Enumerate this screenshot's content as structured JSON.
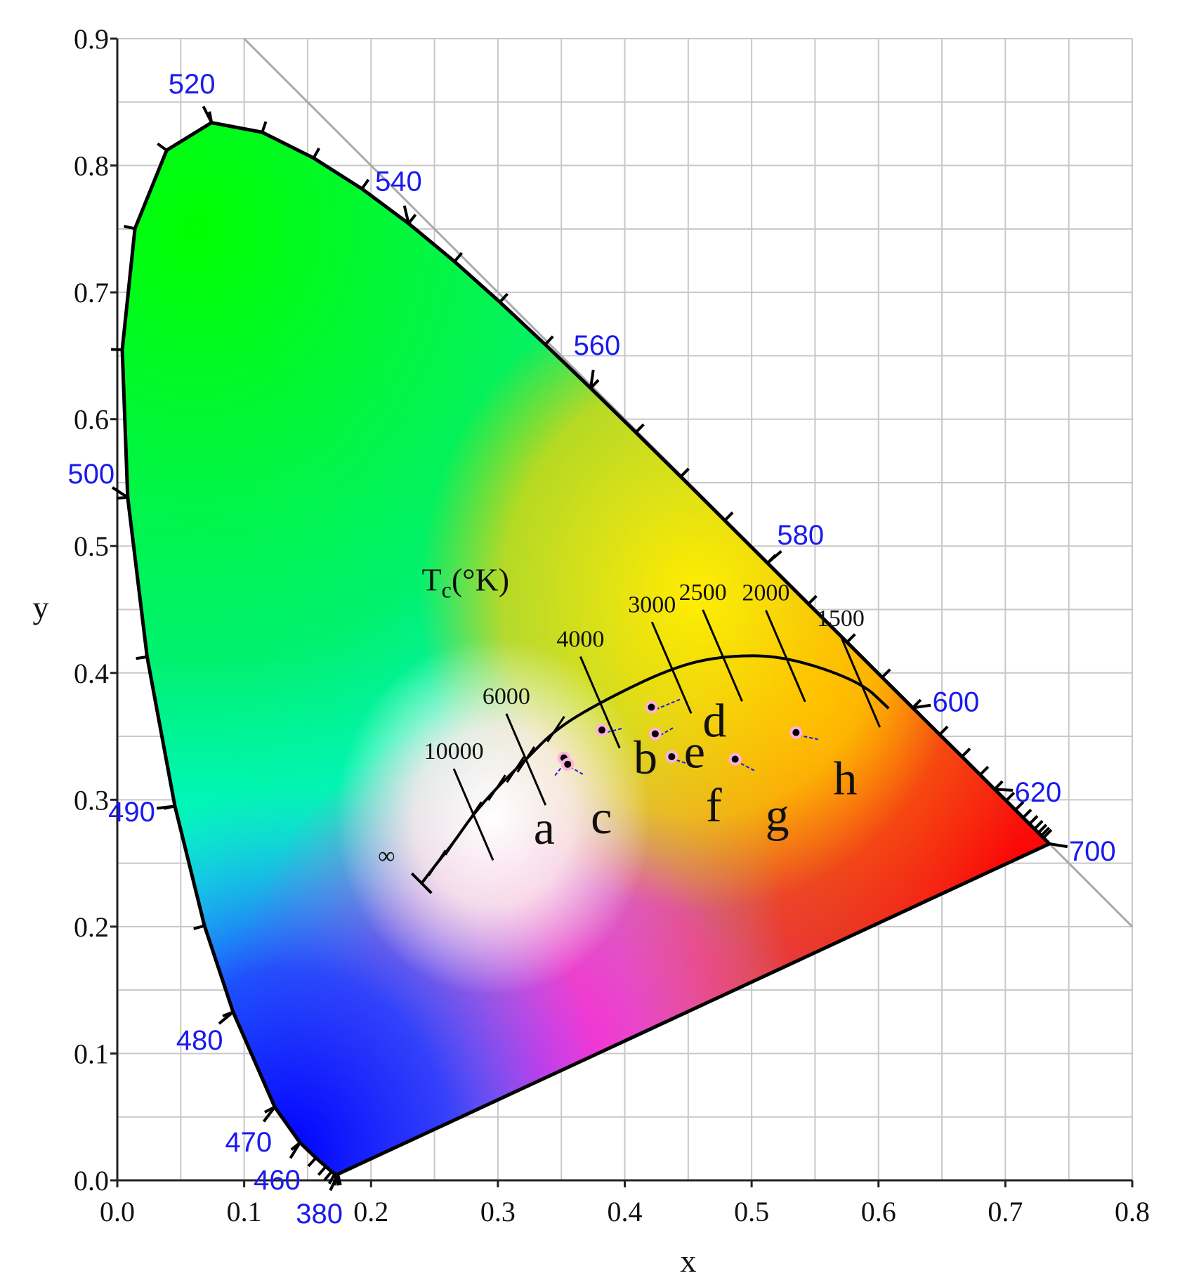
{
  "chart_data": {
    "type": "scatter",
    "xlabel": "x",
    "ylabel": "y",
    "xlim": [
      0.0,
      0.8
    ],
    "ylim": [
      0.0,
      0.9
    ],
    "xticks": [
      "0.0",
      "0.1",
      "0.2",
      "0.3",
      "0.4",
      "0.5",
      "0.6",
      "0.7",
      "0.8"
    ],
    "yticks": [
      "0.0",
      "0.1",
      "0.2",
      "0.3",
      "0.4",
      "0.5",
      "0.6",
      "0.7",
      "0.8",
      "0.9"
    ],
    "grid": true,
    "spectral_locus": [
      [
        0.1741,
        0.005
      ],
      [
        0.1738,
        0.0049
      ],
      [
        0.1733,
        0.0048
      ],
      [
        0.1726,
        0.0048
      ],
      [
        0.1714,
        0.0051
      ],
      [
        0.1689,
        0.0069
      ],
      [
        0.1644,
        0.0109
      ],
      [
        0.1566,
        0.0177
      ],
      [
        0.144,
        0.0297
      ],
      [
        0.1241,
        0.0578
      ],
      [
        0.0913,
        0.1327
      ],
      [
        0.0687,
        0.2007
      ],
      [
        0.0454,
        0.295
      ],
      [
        0.0235,
        0.4127
      ],
      [
        0.0082,
        0.5384
      ],
      [
        0.0039,
        0.6548
      ],
      [
        0.0139,
        0.7502
      ],
      [
        0.0389,
        0.812
      ],
      [
        0.0743,
        0.8338
      ],
      [
        0.1142,
        0.8262
      ],
      [
        0.1547,
        0.8059
      ],
      [
        0.1929,
        0.7816
      ],
      [
        0.2296,
        0.7543
      ],
      [
        0.2658,
        0.7243
      ],
      [
        0.3016,
        0.6923
      ],
      [
        0.3373,
        0.6589
      ],
      [
        0.3731,
        0.6245
      ],
      [
        0.4087,
        0.5896
      ],
      [
        0.4441,
        0.5547
      ],
      [
        0.4788,
        0.5202
      ],
      [
        0.5125,
        0.4866
      ],
      [
        0.5448,
        0.4544
      ],
      [
        0.5752,
        0.4242
      ],
      [
        0.6029,
        0.3965
      ],
      [
        0.627,
        0.3725
      ],
      [
        0.6482,
        0.3514
      ],
      [
        0.6658,
        0.334
      ],
      [
        0.6801,
        0.3197
      ],
      [
        0.6915,
        0.3083
      ],
      [
        0.7006,
        0.2993
      ],
      [
        0.7079,
        0.292
      ],
      [
        0.714,
        0.2859
      ],
      [
        0.719,
        0.2809
      ],
      [
        0.723,
        0.277
      ],
      [
        0.726,
        0.274
      ],
      [
        0.7283,
        0.2717
      ],
      [
        0.73,
        0.27
      ],
      [
        0.7347,
        0.2653
      ]
    ],
    "wavelength_labels": [
      {
        "label": "380",
        "x": 0.1741,
        "y": 0.005
      },
      {
        "label": "460",
        "x": 0.144,
        "y": 0.0297
      },
      {
        "label": "470",
        "x": 0.1241,
        "y": 0.0578
      },
      {
        "label": "480",
        "x": 0.0913,
        "y": 0.1327
      },
      {
        "label": "490",
        "x": 0.0454,
        "y": 0.295
      },
      {
        "label": "500",
        "x": 0.0082,
        "y": 0.5384
      },
      {
        "label": "520",
        "x": 0.0743,
        "y": 0.8338
      },
      {
        "label": "540",
        "x": 0.2296,
        "y": 0.7543
      },
      {
        "label": "560",
        "x": 0.3731,
        "y": 0.6245
      },
      {
        "label": "580",
        "x": 0.5125,
        "y": 0.4866
      },
      {
        "label": "600",
        "x": 0.627,
        "y": 0.3725
      },
      {
        "label": "620",
        "x": 0.6915,
        "y": 0.3083
      },
      {
        "label": "700",
        "x": 0.7347,
        "y": 0.2653
      }
    ],
    "planckian_locus": {
      "title_main": "T",
      "title_sub": "c",
      "title_rest": "(°K)",
      "infinity_label": "∞",
      "points": [
        [
          0.2399,
          0.2342
        ],
        [
          0.2521,
          0.2502
        ],
        [
          0.2653,
          0.2665
        ],
        [
          0.2803,
          0.2883
        ],
        [
          0.2992,
          0.3095
        ],
        [
          0.3138,
          0.3238
        ],
        [
          0.3221,
          0.3318
        ],
        [
          0.3457,
          0.3557
        ],
        [
          0.3805,
          0.3768
        ],
        [
          0.4369,
          0.4041
        ],
        [
          0.478,
          0.4137
        ],
        [
          0.5267,
          0.4133
        ],
        [
          0.5856,
          0.3932
        ],
        [
          0.608,
          0.372
        ]
      ],
      "isotherms": [
        {
          "label": "10000",
          "x": 0.2807,
          "y": 0.2884
        },
        {
          "label": "6000",
          "x": 0.3221,
          "y": 0.3318
        },
        {
          "label": "4000",
          "x": 0.3805,
          "y": 0.3768
        },
        {
          "label": "3000",
          "x": 0.4369,
          "y": 0.4041
        },
        {
          "label": "2500",
          "x": 0.477,
          "y": 0.4137
        },
        {
          "label": "2000",
          "x": 0.5267,
          "y": 0.4133
        },
        {
          "label": "1500",
          "x": 0.5856,
          "y": 0.3932
        }
      ]
    },
    "points": [
      {
        "label": "a",
        "x": 0.352,
        "y": 0.333
      },
      {
        "label": "b",
        "x": 0.382,
        "y": 0.355
      },
      {
        "label": "c",
        "x": 0.355,
        "y": 0.328
      },
      {
        "label": "d",
        "x": 0.421,
        "y": 0.373
      },
      {
        "label": "e",
        "x": 0.424,
        "y": 0.352
      },
      {
        "label": "f",
        "x": 0.437,
        "y": 0.334
      },
      {
        "label": "g",
        "x": 0.487,
        "y": 0.332
      },
      {
        "label": "h",
        "x": 0.535,
        "y": 0.353
      }
    ]
  }
}
